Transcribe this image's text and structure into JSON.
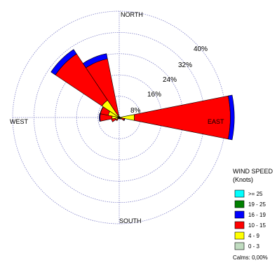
{
  "chart_data": {
    "type": "wind-rose",
    "directions": [
      "NORTH",
      "EAST",
      "SOUTH",
      "WEST"
    ],
    "ring_labels": [
      "8%",
      "16%",
      "24%",
      "32%",
      "40%"
    ],
    "rings": [
      8,
      16,
      24,
      32,
      40
    ],
    "max_percent": 40,
    "sector_count": 16,
    "legend": {
      "title_line1": "WIND SPEED",
      "title_line2": "(Knots)",
      "classes": [
        {
          "label": ">= 25",
          "color": "#00ffff"
        },
        {
          "label": "19 - 25",
          "color": "#008000"
        },
        {
          "label": "16 - 19",
          "color": "#0000ff"
        },
        {
          "label": "10 - 15",
          "color": "#ff0000"
        },
        {
          "label": "4 - 9",
          "color": "#ffff00"
        },
        {
          "label": "0 - 3",
          "color": "#c0dcc0"
        }
      ],
      "calms_label": "Calms: 0,00%"
    },
    "sectors": [
      {
        "direction_deg": 0,
        "bands": [
          0,
          0,
          0,
          0,
          0.5,
          0
        ]
      },
      {
        "direction_deg": 22.5,
        "bands": [
          0,
          0,
          0,
          0,
          0.3,
          0
        ]
      },
      {
        "direction_deg": 45,
        "bands": [
          0,
          0,
          0,
          0,
          0.3,
          0
        ]
      },
      {
        "direction_deg": 67.5,
        "bands": [
          0,
          0,
          0,
          0,
          0.3,
          0
        ]
      },
      {
        "direction_deg": 90,
        "bands": [
          0,
          0,
          1.5,
          36,
          5.5,
          0.2
        ]
      },
      {
        "direction_deg": 112.5,
        "bands": [
          0,
          0,
          0.2,
          1.0,
          1.0,
          0
        ]
      },
      {
        "direction_deg": 135,
        "bands": [
          0,
          0,
          0,
          0.5,
          0.3,
          0
        ]
      },
      {
        "direction_deg": 157.5,
        "bands": [
          0,
          0,
          0,
          0.3,
          0.3,
          0
        ]
      },
      {
        "direction_deg": 180,
        "bands": [
          0,
          0,
          0,
          0.2,
          0.3,
          0
        ]
      },
      {
        "direction_deg": 202.5,
        "bands": [
          0,
          0,
          0,
          0.2,
          0.3,
          0
        ]
      },
      {
        "direction_deg": 225,
        "bands": [
          0,
          0,
          0,
          1.0,
          0.5,
          0
        ]
      },
      {
        "direction_deg": 247.5,
        "bands": [
          0,
          0,
          0,
          1.5,
          1.5,
          0
        ]
      },
      {
        "direction_deg": 270,
        "bands": [
          0,
          0,
          0.3,
          4.5,
          2.5,
          0.2
        ]
      },
      {
        "direction_deg": 292.5,
        "bands": [
          0,
          0,
          0.1,
          3.0,
          4.0,
          0.2
        ]
      },
      {
        "direction_deg": 315,
        "bands": [
          0,
          0,
          2.0,
          21,
          7.5,
          0.3
        ]
      },
      {
        "direction_deg": 337.5,
        "bands": [
          0,
          0,
          2.0,
          21.5,
          0.8,
          0.2
        ]
      }
    ]
  }
}
